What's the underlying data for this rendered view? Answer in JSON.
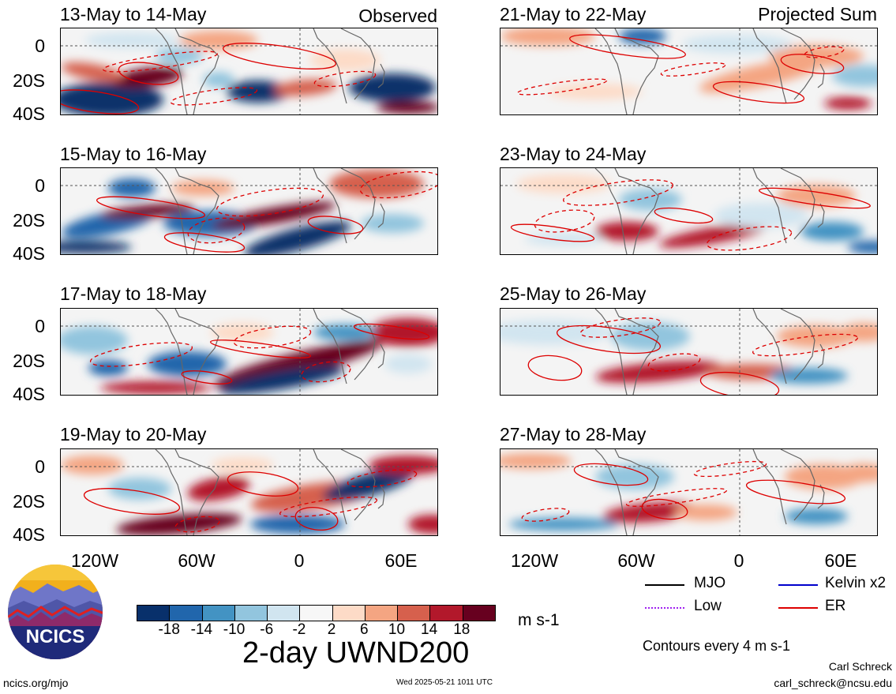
{
  "chart_data": {
    "type": "heatmap",
    "title": "2-day UWND200",
    "units": "m s-1",
    "contour_note": "Contours every 4 m s-1",
    "groups": [
      {
        "label": "Observed",
        "panels": [
          "13-May to 14-May",
          "15-May to 16-May",
          "17-May to 18-May",
          "19-May to 20-May"
        ]
      },
      {
        "label": "Projected Sum",
        "panels": [
          "21-May to 22-May",
          "23-May to 24-May",
          "25-May to 26-May",
          "27-May to 28-May"
        ]
      }
    ],
    "y_ticks": [
      "0",
      "20S",
      "40S"
    ],
    "y_range": [
      "10N",
      "40S"
    ],
    "x_ticks": [
      "120W",
      "60W",
      "0",
      "60E"
    ],
    "x_range": [
      "150W",
      "80E"
    ],
    "colorbar": {
      "ticks": [
        "-18",
        "-14",
        "-10",
        "-6",
        "-2",
        "2",
        "6",
        "10",
        "14",
        "18"
      ],
      "colors": [
        "#08306b",
        "#2166ac",
        "#4393c3",
        "#92c5de",
        "#d1e5f0",
        "#f7f7f7",
        "#fddbc7",
        "#f4a582",
        "#d6604d",
        "#b2182b",
        "#67001f"
      ]
    },
    "legend": [
      {
        "name": "MJO",
        "color": "#000000",
        "style": "solid"
      },
      {
        "name": "Kelvin x2",
        "color": "#0000cc",
        "style": "solid"
      },
      {
        "name": "Low",
        "color": "#a020f0",
        "style": "dotted"
      },
      {
        "name": "ER",
        "color": "#dd0000",
        "style": "solid"
      }
    ]
  },
  "footer": {
    "logo_text": "NCICS",
    "site": "ncics.org/mjo",
    "timestamp": "Wed 2025-05-21 1011 UTC",
    "author": "Carl Schreck",
    "email": "carl_schreck@ncsu.edu"
  }
}
